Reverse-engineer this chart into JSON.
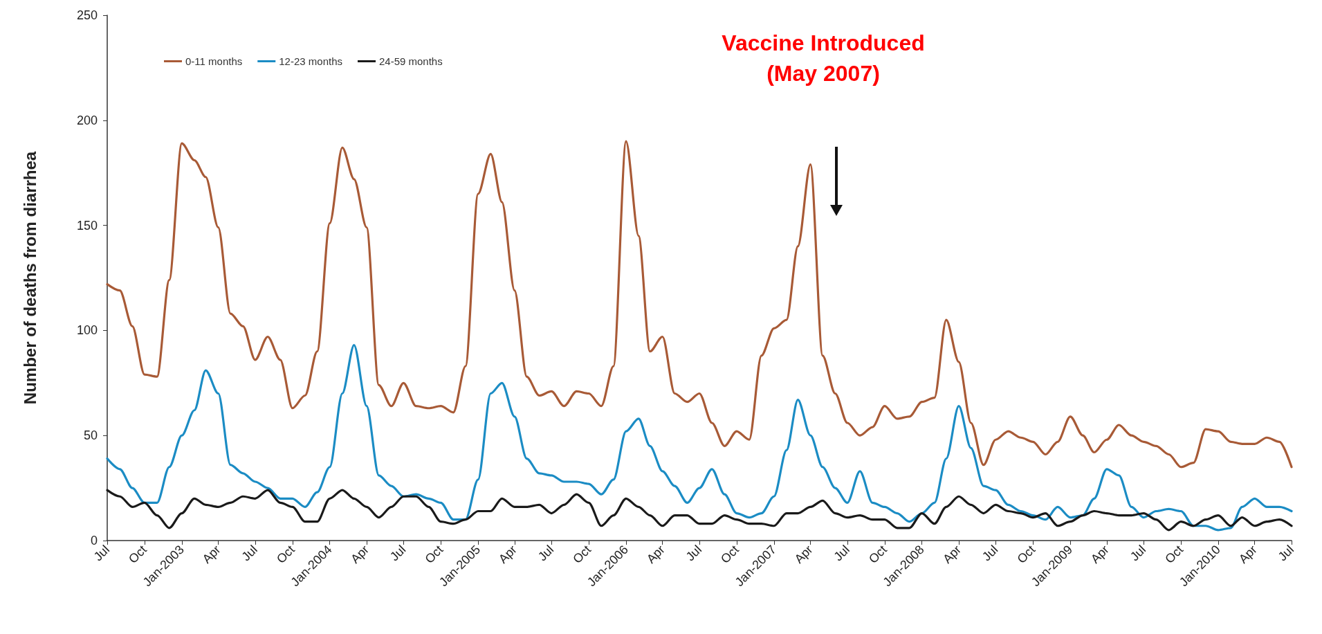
{
  "chart_data": {
    "type": "line",
    "ylabel": "Number of deaths from diarrhea",
    "annotations": [
      "Vaccine Introduced\n(May 2007)"
    ],
    "x": [
      "2002-07",
      "2002-08",
      "2002-09",
      "2002-10",
      "2002-11",
      "2002-12",
      "2003-01",
      "2003-02",
      "2003-03",
      "2003-04",
      "2003-05",
      "2003-06",
      "2003-07",
      "2003-08",
      "2003-09",
      "2003-10",
      "2003-11",
      "2003-12",
      "2004-01",
      "2004-02",
      "2004-03",
      "2004-04",
      "2004-05",
      "2004-06",
      "2004-07",
      "2004-08",
      "2004-09",
      "2004-10",
      "2004-11",
      "2004-12",
      "2005-01",
      "2005-02",
      "2005-03",
      "2005-04",
      "2005-05",
      "2005-06",
      "2005-07",
      "2005-08",
      "2005-09",
      "2005-10",
      "2005-11",
      "2005-12",
      "2006-01",
      "2006-02",
      "2006-03",
      "2006-04",
      "2006-05",
      "2006-06",
      "2006-07",
      "2006-08",
      "2006-09",
      "2006-10",
      "2006-11",
      "2006-12",
      "2007-01",
      "2007-02",
      "2007-03",
      "2007-04",
      "2007-05",
      "2007-06",
      "2007-07",
      "2007-08",
      "2007-09",
      "2007-10",
      "2007-11",
      "2007-12",
      "2008-01",
      "2008-02",
      "2008-03",
      "2008-04",
      "2008-05",
      "2008-06",
      "2008-07",
      "2008-08",
      "2008-09",
      "2008-10",
      "2008-11",
      "2008-12",
      "2009-01",
      "2009-02",
      "2009-03",
      "2009-04",
      "2009-05",
      "2009-06",
      "2009-07",
      "2009-08",
      "2009-09",
      "2009-10",
      "2009-11",
      "2009-12",
      "2010-01",
      "2010-02",
      "2010-03",
      "2010-04",
      "2010-05",
      "2010-06",
      "2010-07"
    ],
    "series": [
      {
        "name": "0-11 months",
        "color": "#a85a36",
        "values": [
          122,
          119,
          102,
          79,
          78,
          124,
          189,
          181,
          173,
          149,
          108,
          102,
          86,
          97,
          86,
          63,
          69,
          90,
          151,
          187,
          172,
          149,
          74,
          64,
          75,
          64,
          63,
          64,
          61,
          83,
          165,
          184,
          161,
          119,
          78,
          69,
          71,
          64,
          71,
          70,
          64,
          83,
          190,
          145,
          90,
          97,
          70,
          66,
          70,
          56,
          45,
          52,
          48,
          88,
          101,
          105,
          140,
          179,
          88,
          70,
          56,
          50,
          54,
          64,
          58,
          59,
          66,
          68,
          105,
          85,
          56,
          36,
          48,
          52,
          49,
          47,
          41,
          47,
          59,
          50,
          42,
          48,
          55,
          50,
          47,
          45,
          41,
          35,
          37,
          53,
          52,
          47,
          46,
          46,
          49,
          47,
          35
        ]
      },
      {
        "name": "12-23 months",
        "color": "#1b8cc4",
        "values": [
          39,
          34,
          25,
          18,
          18,
          35,
          50,
          62,
          81,
          70,
          36,
          32,
          28,
          25,
          20,
          20,
          16,
          23,
          35,
          70,
          93,
          64,
          31,
          26,
          21,
          22,
          20,
          18,
          10,
          10,
          29,
          70,
          75,
          59,
          39,
          32,
          31,
          28,
          28,
          27,
          22,
          29,
          52,
          58,
          45,
          33,
          26,
          18,
          25,
          34,
          22,
          13,
          11,
          13,
          21,
          43,
          67,
          50,
          35,
          25,
          18,
          33,
          18,
          16,
          13,
          9,
          13,
          18,
          39,
          64,
          44,
          26,
          24,
          17,
          14,
          12,
          10,
          16,
          11,
          12,
          20,
          34,
          31,
          16,
          11,
          14,
          15,
          14,
          7,
          7,
          5,
          6,
          16,
          20,
          16,
          16,
          14
        ]
      },
      {
        "name": "24-59 months",
        "color": "#1a1a1a",
        "values": [
          24,
          21,
          16,
          18,
          12,
          6,
          13,
          20,
          17,
          16,
          18,
          21,
          20,
          24,
          18,
          16,
          9,
          9,
          20,
          24,
          20,
          16,
          11,
          16,
          21,
          21,
          16,
          9,
          8,
          10,
          14,
          14,
          20,
          16,
          16,
          17,
          13,
          17,
          22,
          18,
          7,
          12,
          20,
          16,
          12,
          7,
          12,
          12,
          8,
          8,
          12,
          10,
          8,
          8,
          7,
          13,
          13,
          16,
          19,
          13,
          11,
          12,
          10,
          10,
          6,
          6,
          13,
          8,
          16,
          21,
          17,
          13,
          17,
          14,
          13,
          11,
          13,
          7,
          9,
          12,
          14,
          13,
          12,
          12,
          13,
          10,
          5,
          9,
          7,
          10,
          12,
          7,
          11,
          7,
          9,
          10,
          7
        ]
      }
    ],
    "xlim": [
      "2002-07",
      "2010-07"
    ],
    "xticks": [
      {
        "value": "2002-07",
        "label": "Jul"
      },
      {
        "value": "2002-10",
        "label": "Oct"
      },
      {
        "value": "2003-01",
        "label": "Jan-2003"
      },
      {
        "value": "2003-04",
        "label": "Apr"
      },
      {
        "value": "2003-07",
        "label": "Jul"
      },
      {
        "value": "2003-10",
        "label": "Oct"
      },
      {
        "value": "2004-01",
        "label": "Jan-2004"
      },
      {
        "value": "2004-04",
        "label": "Apr"
      },
      {
        "value": "2004-07",
        "label": "Jul"
      },
      {
        "value": "2004-10",
        "label": "Oct"
      },
      {
        "value": "2005-01",
        "label": "Jan-2005"
      },
      {
        "value": "2005-04",
        "label": "Apr"
      },
      {
        "value": "2005-07",
        "label": "Jul"
      },
      {
        "value": "2005-10",
        "label": "Oct"
      },
      {
        "value": "2006-01",
        "label": "Jan-2006"
      },
      {
        "value": "2006-04",
        "label": "Apr"
      },
      {
        "value": "2006-07",
        "label": "Jul"
      },
      {
        "value": "2006-10",
        "label": "Oct"
      },
      {
        "value": "2007-01",
        "label": "Jan-2007"
      },
      {
        "value": "2007-04",
        "label": "Apr"
      },
      {
        "value": "2007-07",
        "label": "Jul"
      },
      {
        "value": "2007-10",
        "label": "Oct"
      },
      {
        "value": "2008-01",
        "label": "Jan-2008"
      },
      {
        "value": "2008-04",
        "label": "Apr"
      },
      {
        "value": "2008-07",
        "label": "Jul"
      },
      {
        "value": "2008-10",
        "label": "Oct"
      },
      {
        "value": "2009-01",
        "label": "Jan-2009"
      },
      {
        "value": "2009-04",
        "label": "Apr"
      },
      {
        "value": "2009-07",
        "label": "Jul"
      },
      {
        "value": "2009-10",
        "label": "Oct"
      },
      {
        "value": "2010-01",
        "label": "Jan-2010"
      },
      {
        "value": "2010-04",
        "label": "Apr"
      },
      {
        "value": "2010-07",
        "label": "Jul"
      }
    ],
    "ylim": [
      0,
      250
    ],
    "yticks": [
      0,
      50,
      100,
      150,
      200,
      250
    ],
    "grid": false,
    "legend": "top left",
    "marker": "none",
    "line_style": "solid"
  }
}
